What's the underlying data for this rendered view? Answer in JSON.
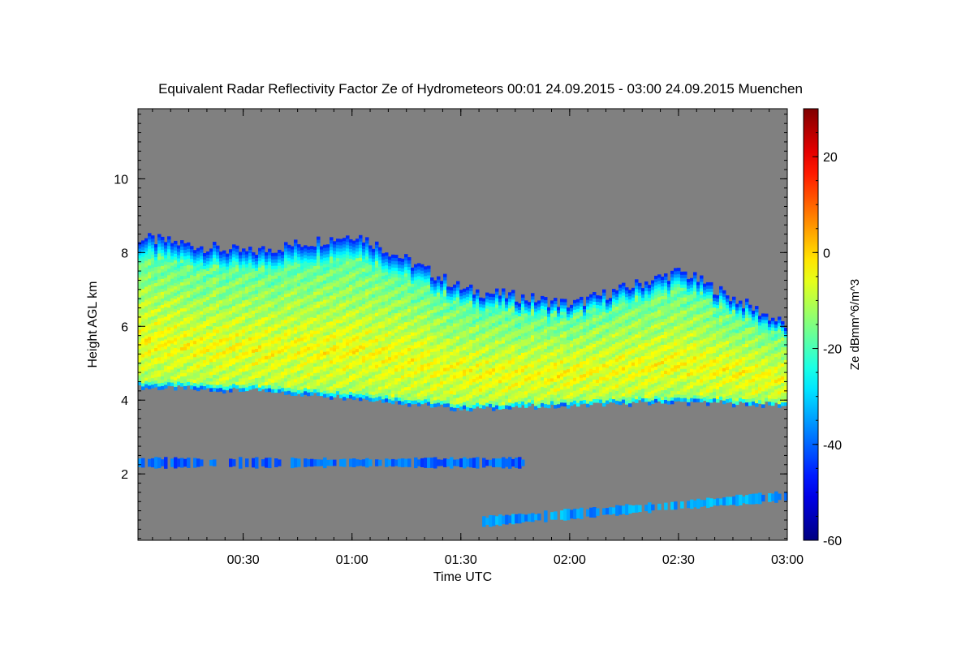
{
  "chart_data": {
    "type": "heatmap",
    "title": "Equivalent Radar Reflectivity Factor Ze of Hydrometeors   00:01 24.09.2015 - 03:00 24.09.2015 Muenchen",
    "xlabel": "Time UTC",
    "ylabel": "Height AGL km",
    "xlim": [
      "00:01",
      "03:00"
    ],
    "x_ticks": [
      "00:30",
      "01:00",
      "01:30",
      "02:00",
      "02:30",
      "03:00"
    ],
    "ylim": [
      0.2,
      11.9
    ],
    "y_ticks": [
      2,
      4,
      6,
      8,
      10
    ],
    "colorbar": {
      "label": "Ze dBmm^6/m^3",
      "range": [
        -60,
        30
      ],
      "ticks": [
        -60,
        -40,
        -20,
        0,
        20
      ],
      "colormap": "jet"
    },
    "background_color": "#808080",
    "features": [
      {
        "name": "main cloud layer",
        "time_start": "00:01",
        "time_end": "03:00",
        "base_km": [
          4.4,
          4.3,
          4.1,
          3.8,
          3.9,
          4.0,
          3.9
        ],
        "top_km": [
          8.4,
          8.0,
          8.5,
          7.0,
          6.6,
          7.5,
          6.0
        ],
        "core_dbz": -5,
        "max_dbz": 5
      },
      {
        "name": "low layer 2.3 km",
        "time_start": "00:01",
        "time_end": "01:48",
        "height_km": 2.3,
        "dbz": -35
      },
      {
        "name": "low layer rising",
        "time_start": "01:35",
        "time_end": "03:00",
        "height_km": [
          0.7,
          1.4
        ],
        "dbz": -30
      }
    ]
  }
}
